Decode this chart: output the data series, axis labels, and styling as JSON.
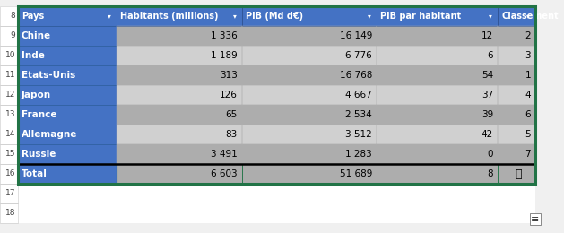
{
  "headers": [
    "Pays",
    "Habitants (millions)",
    "PIB (Md d€)",
    "PIB par habitant",
    "Classement"
  ],
  "rows": [
    [
      "Chine",
      "1 336",
      "16 149",
      "12",
      "2"
    ],
    [
      "Inde",
      "1 189",
      "6 776",
      "6",
      "3"
    ],
    [
      "Etats-Unis",
      "313",
      "16 768",
      "54",
      "1"
    ],
    [
      "Japon",
      "126",
      "4 667",
      "37",
      "4"
    ],
    [
      "France",
      "65",
      "2 534",
      "39",
      "6"
    ],
    [
      "Allemagne",
      "83",
      "3 512",
      "42",
      "5"
    ],
    [
      "Russie",
      "3 491",
      "1 283",
      "0",
      "7"
    ]
  ],
  "total_row": [
    "Total",
    "6 603",
    "51 689",
    "8",
    ""
  ],
  "row_numbers": [
    "8",
    "9",
    "10",
    "11",
    "12",
    "13",
    "14",
    "15",
    "16",
    "17",
    "18"
  ],
  "header_bg": "#4472C4",
  "header_text": "#FFFFFF",
  "row_bg_dark": "#ADADAD",
  "row_bg_light": "#D0D0D0",
  "country_bg": "#4472C4",
  "country_text": "#FFFFFF",
  "total_bg": "#4472C4",
  "total_text": "#FFFFFF",
  "total_data_bg": "#ADADAD",
  "row_num_bg": "#FFFFFF",
  "row_num_border": "#C8C8C8",
  "header_border": "#305496",
  "data_border": "#B0B0B0",
  "outer_border_color": "#217346",
  "thick_line_color": "#000000",
  "fig_bg": "#F0F0F0",
  "empty_row_bg": "#FFFFFF"
}
